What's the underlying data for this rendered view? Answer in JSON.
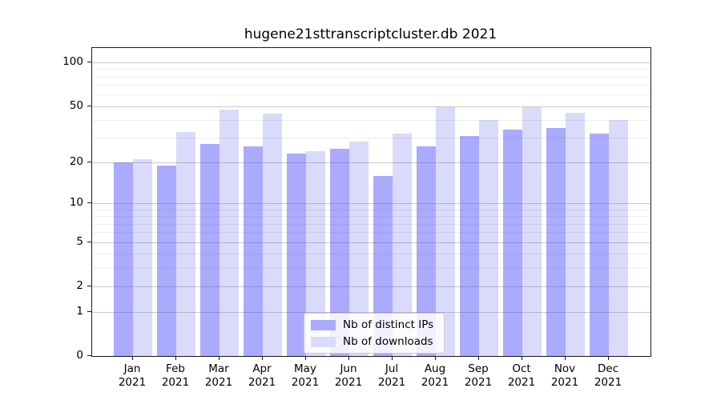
{
  "figure": {
    "title": "hugene21sttranscriptcluster.db 2021"
  },
  "chart_data": {
    "type": "bar",
    "title": "hugene21sttranscriptcluster.db 2021",
    "categories": [
      "Jan 2021",
      "Feb 2021",
      "Mar 2021",
      "Apr 2021",
      "May 2021",
      "Jun 2021",
      "Jul 2021",
      "Aug 2021",
      "Sep 2021",
      "Oct 2021",
      "Nov 2021",
      "Dec 2021"
    ],
    "x_tick_month": [
      "Jan",
      "Feb",
      "Mar",
      "Apr",
      "May",
      "Jun",
      "Jul",
      "Aug",
      "Sep",
      "Oct",
      "Nov",
      "Dec"
    ],
    "x_tick_year": "2021",
    "series": [
      {
        "name": "Nb of distinct IPs",
        "color": "#aaaaff",
        "values": [
          20,
          19,
          27,
          26,
          23,
          25,
          16,
          26,
          31,
          34,
          35,
          32
        ]
      },
      {
        "name": "Nb of downloads",
        "color": "#dadafb",
        "values": [
          21,
          33,
          47,
          44,
          24,
          28,
          32,
          49,
          40,
          49,
          45,
          40
        ]
      }
    ],
    "xlabel": "",
    "ylabel": "",
    "yscale": "log10(value+1)",
    "yticks": [
      100,
      50,
      20,
      10,
      5,
      2,
      1,
      0
    ],
    "minor_gridlines": [
      3,
      4,
      6,
      7,
      8,
      9,
      30,
      40,
      60,
      70,
      80,
      90
    ],
    "major_gridline_values": [
      1,
      10,
      100
    ],
    "ylim": [
      0,
      127
    ],
    "grid": true,
    "legend_position": "lower center",
    "frame_color": "#1a1a1a"
  }
}
